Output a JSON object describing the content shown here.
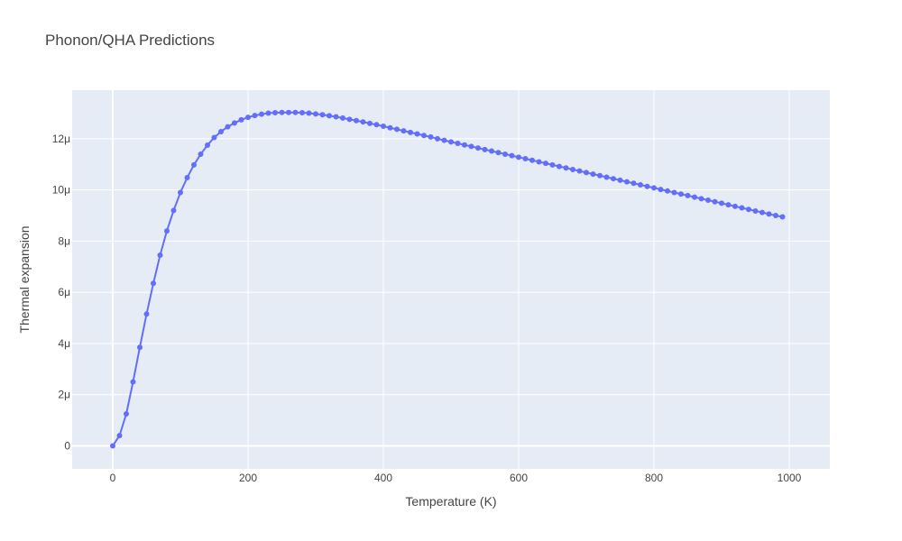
{
  "chart_data": {
    "type": "scatter",
    "mode": "lines+markers",
    "title": "Phonon/QHA Predictions",
    "xlabel": "Temperature (K)",
    "ylabel": "Thermal expansion",
    "xlim": [
      -60,
      1060
    ],
    "ylim": [
      -9e-07,
      1.39e-05
    ],
    "x_ticks": [
      0,
      200,
      400,
      600,
      800,
      1000
    ],
    "x_tick_labels": [
      "0",
      "200",
      "400",
      "600",
      "800",
      "1000"
    ],
    "y_ticks": [
      0,
      2e-06,
      4e-06,
      6e-06,
      8e-06,
      1e-05,
      1.2e-05
    ],
    "y_tick_labels": [
      "0",
      "2μ",
      "4μ",
      "6μ",
      "8μ",
      "10μ",
      "12μ"
    ],
    "grid": true,
    "colors": {
      "series": "#636efa",
      "plot_bg": "#e5ecf6",
      "grid": "#ffffff"
    },
    "series": [
      {
        "x": [
          0,
          10,
          20,
          30,
          40,
          50,
          60,
          70,
          80,
          90,
          100,
          110,
          120,
          130,
          140,
          150,
          160,
          170,
          180,
          190,
          200,
          210,
          220,
          230,
          240,
          250,
          260,
          270,
          280,
          290,
          300,
          310,
          320,
          330,
          340,
          350,
          360,
          370,
          380,
          390,
          400,
          410,
          420,
          430,
          440,
          450,
          460,
          470,
          480,
          490,
          500,
          510,
          520,
          530,
          540,
          550,
          560,
          570,
          580,
          590,
          600,
          610,
          620,
          630,
          640,
          650,
          660,
          670,
          680,
          690,
          700,
          710,
          720,
          730,
          740,
          750,
          760,
          770,
          780,
          790,
          800,
          810,
          820,
          830,
          840,
          850,
          860,
          870,
          880,
          890,
          900,
          910,
          920,
          930,
          940,
          950,
          960,
          970,
          980,
          990
        ],
        "y": [
          0,
          4e-07,
          1.25e-06,
          2.5e-06,
          3.85e-06,
          5.15e-06,
          6.35e-06,
          7.45e-06,
          8.4e-06,
          9.2e-06,
          9.9e-06,
          1.048e-05,
          1.098e-05,
          1.14e-05,
          1.175e-05,
          1.205e-05,
          1.228e-05,
          1.247e-05,
          1.262e-05,
          1.274e-05,
          1.284e-05,
          1.291e-05,
          1.296e-05,
          1.3e-05,
          1.302e-05,
          1.303e-05,
          1.303e-05,
          1.303e-05,
          1.302e-05,
          1.3e-05,
          1.297e-05,
          1.294e-05,
          1.29e-05,
          1.286e-05,
          1.281e-05,
          1.276e-05,
          1.271e-05,
          1.266e-05,
          1.26e-05,
          1.255e-05,
          1.249e-05,
          1.243e-05,
          1.237e-05,
          1.231e-05,
          1.225e-05,
          1.219e-05,
          1.213e-05,
          1.207e-05,
          1.2e-05,
          1.194e-05,
          1.188e-05,
          1.182e-05,
          1.176e-05,
          1.17e-05,
          1.164e-05,
          1.158e-05,
          1.152e-05,
          1.146e-05,
          1.14e-05,
          1.134e-05,
          1.128e-05,
          1.122e-05,
          1.116e-05,
          1.11e-05,
          1.104e-05,
          1.098e-05,
          1.092e-05,
          1.086e-05,
          1.08e-05,
          1.074e-05,
          1.068e-05,
          1.062e-05,
          1.056e-05,
          1.05e-05,
          1.044e-05,
          1.038e-05,
          1.032e-05,
          1.026e-05,
          1.02e-05,
          1.014e-05,
          1.008e-05,
          1.002e-05,
          9.96e-06,
          9.9e-06,
          9.84e-06,
          9.78e-06,
          9.72e-06,
          9.66e-06,
          9.6e-06,
          9.54e-06,
          9.48e-06,
          9.42e-06,
          9.36e-06,
          9.3e-06,
          9.24e-06,
          9.18e-06,
          9.12e-06,
          9.06e-06,
          9e-06,
          8.95e-06
        ]
      }
    ]
  }
}
